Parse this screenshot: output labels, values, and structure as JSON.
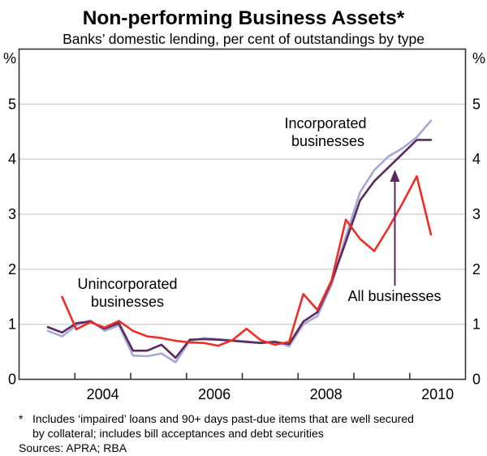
{
  "chart": {
    "title": "Non-performing Business Assets*",
    "subtitle": "Banks’ domestic lending, per cent of outstandings by type",
    "unit_left": "%",
    "unit_right": "%"
  },
  "chart_data": {
    "type": "line",
    "title": "Non-performing Business Assets*",
    "subtitle": "Banks’ domestic lending, per cent of outstandings by type",
    "ylabel": "%",
    "ylim": [
      0,
      6
    ],
    "yticks": [
      0,
      1,
      2,
      3,
      4,
      5
    ],
    "grid": "horizontal",
    "x_year_ticks": [
      2004,
      2005,
      2006,
      2007,
      2008,
      2009,
      2010
    ],
    "x_tick_labels": [
      "2004",
      "2006",
      "2008",
      "2010"
    ],
    "x_range_years": [
      2003,
      2011
    ],
    "categories": [
      "Jun-03",
      "Sep-03",
      "Dec-03",
      "Mar-04",
      "Jun-04",
      "Sep-04",
      "Dec-04",
      "Mar-05",
      "Jun-05",
      "Sep-05",
      "Dec-05",
      "Mar-06",
      "Jun-06",
      "Sep-06",
      "Dec-06",
      "Mar-07",
      "Jun-07",
      "Sep-07",
      "Dec-07",
      "Mar-08",
      "Jun-08",
      "Sep-08",
      "Dec-08",
      "Mar-09",
      "Jun-09",
      "Sep-09",
      "Dec-09",
      "Mar-10"
    ],
    "series": [
      {
        "name": "Incorporated businesses",
        "color": "#a5a7d7",
        "values": [
          0.88,
          0.78,
          0.98,
          1.07,
          0.88,
          0.98,
          0.43,
          0.42,
          0.47,
          0.31,
          0.7,
          0.75,
          0.73,
          0.71,
          0.69,
          0.66,
          0.69,
          0.6,
          1.0,
          1.15,
          1.72,
          2.6,
          3.4,
          3.8,
          4.05,
          4.2,
          4.4,
          4.7
        ]
      },
      {
        "name": "All businesses",
        "color": "#5a2a5c",
        "values": [
          0.95,
          0.85,
          1.02,
          1.05,
          0.92,
          1.02,
          0.52,
          0.52,
          0.63,
          0.39,
          0.72,
          0.73,
          0.72,
          0.7,
          0.68,
          0.66,
          0.68,
          0.64,
          1.05,
          1.22,
          1.78,
          2.5,
          3.25,
          3.6,
          3.85,
          4.1,
          4.35,
          4.35
        ]
      },
      {
        "name": "Unincorporated businesses",
        "color": "#ee2e24",
        "values": [
          null,
          1.5,
          0.91,
          1.04,
          0.94,
          1.06,
          0.88,
          0.78,
          0.75,
          0.7,
          0.67,
          0.66,
          0.61,
          0.71,
          0.92,
          0.71,
          0.63,
          0.68,
          1.55,
          1.26,
          1.8,
          2.9,
          2.55,
          2.33,
          2.75,
          3.2,
          3.69,
          2.63
        ]
      }
    ],
    "annotations": [
      {
        "id": "unincorporated",
        "line1": "Unincorporated",
        "line2": "businesses",
        "color": "#ee2e24"
      },
      {
        "id": "incorporated",
        "line1": "Incorporated",
        "line2": "businesses",
        "color": "#a5a7d7"
      },
      {
        "id": "all",
        "line1": "All businesses",
        "color": "#5a2a5c",
        "arrow": true
      }
    ]
  },
  "footnotes": {
    "star": "*",
    "line1": "Includes ‘impaired’ loans and 90+ days past-due items that are well secured",
    "line2": "by collateral; includes bill acceptances and debt securities",
    "sources": "Sources: APRA; RBA"
  },
  "colors": {
    "grid": "#c9c9c9",
    "axis": "#333333",
    "unincorporated": "#ee2e24",
    "incorporated": "#a5a7d7",
    "all_businesses": "#5a2a5c"
  }
}
